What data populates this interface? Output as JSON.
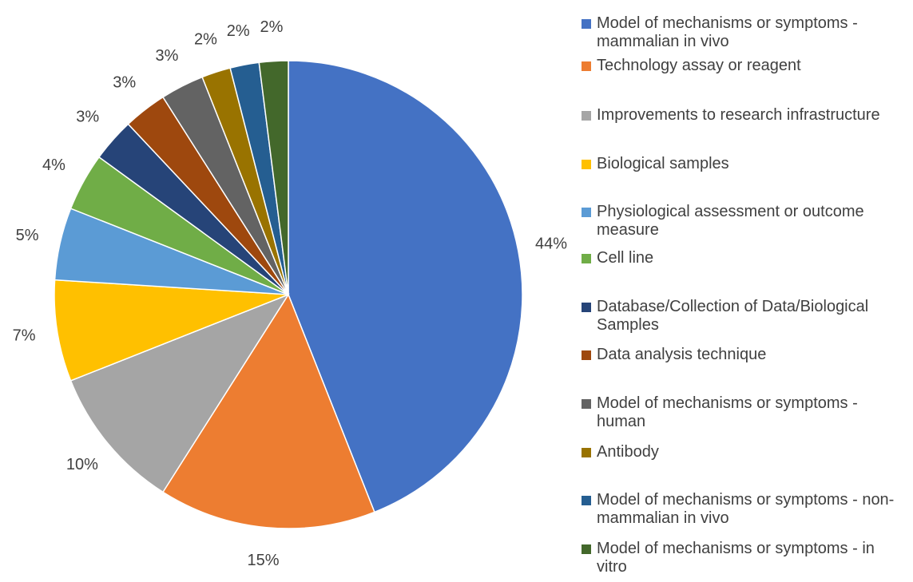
{
  "chart_data": {
    "type": "pie",
    "categories": [
      "Model of mechanisms or symptoms - mammalian in vivo",
      "Technology assay or reagent",
      "Improvements to research infrastructure",
      "Biological samples",
      "Physiological assessment or outcome measure",
      "Cell line",
      "Database/Collection of Data/Biological Samples",
      "Data analysis technique",
      "Model of mechanisms or symptoms - human",
      "Antibody",
      "Model of mechanisms or symptoms - non-mammalian in vivo",
      "Model of mechanisms or symptoms - in vitro"
    ],
    "values": [
      44,
      15,
      10,
      7,
      5,
      4,
      3,
      3,
      3,
      2,
      2,
      2
    ],
    "value_labels": [
      "44%",
      "15%",
      "10%",
      "7%",
      "5%",
      "4%",
      "3%",
      "3%",
      "3%",
      "2%",
      "2%",
      "2%"
    ],
    "colors": [
      "#4472c4",
      "#ed7d31",
      "#a5a5a5",
      "#ffc000",
      "#5b9bd5",
      "#70ad47",
      "#264478",
      "#9e480e",
      "#636363",
      "#997300",
      "#255e91",
      "#43682b"
    ],
    "legend": "right"
  }
}
